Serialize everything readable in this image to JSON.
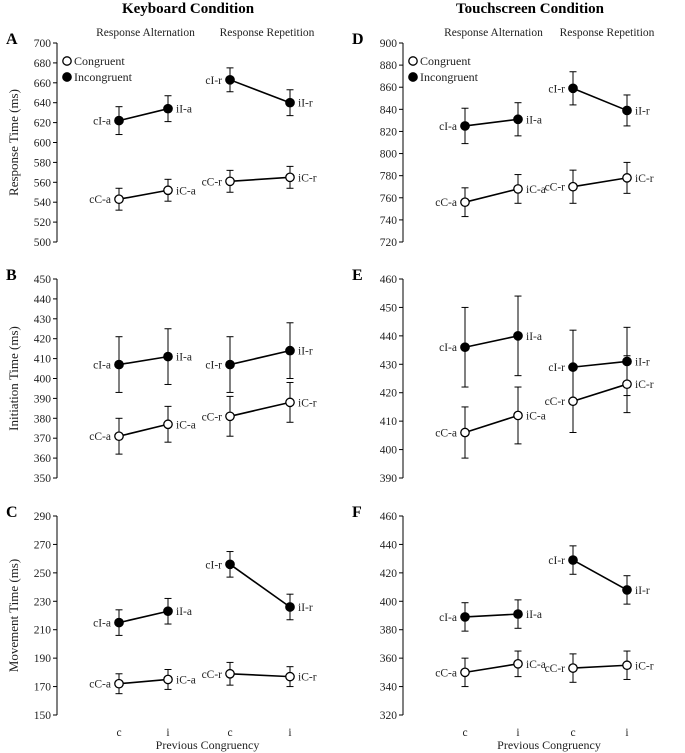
{
  "titles": {
    "keyboard": "Keyboard Condition",
    "touchscreen": "Touchscreen Condition"
  },
  "legend": {
    "congruent": "Congruent",
    "incongruent": "Incongruent"
  },
  "segments": {
    "alternation": "Response Alternation",
    "repetition": "Response Repetition"
  },
  "xaxis": {
    "label": "Previous Congruency",
    "ticks": [
      "c",
      "i",
      "c",
      "i"
    ]
  },
  "chart_data": [
    {
      "panel": "A",
      "type": "line",
      "ylabel": "Response Time (ms)",
      "ylim": [
        500,
        700
      ],
      "ystep": 20,
      "series": [
        {
          "name": "Incongruent",
          "marker": "filled",
          "groups": [
            {
              "points": [
                {
                  "x": "c",
                  "y": 622,
                  "err": 14,
                  "label": "cI-a"
                },
                {
                  "x": "i",
                  "y": 634,
                  "err": 13,
                  "label": "iI-a"
                }
              ]
            },
            {
              "points": [
                {
                  "x": "c",
                  "y": 663,
                  "err": 12,
                  "label": "cI-r"
                },
                {
                  "x": "i",
                  "y": 640,
                  "err": 13,
                  "label": "iI-r"
                }
              ]
            }
          ]
        },
        {
          "name": "Congruent",
          "marker": "open",
          "groups": [
            {
              "points": [
                {
                  "x": "c",
                  "y": 543,
                  "err": 11,
                  "label": "cC-a"
                },
                {
                  "x": "i",
                  "y": 552,
                  "err": 11,
                  "label": "iC-a"
                }
              ]
            },
            {
              "points": [
                {
                  "x": "c",
                  "y": 561,
                  "err": 11,
                  "label": "cC-r"
                },
                {
                  "x": "i",
                  "y": 565,
                  "err": 11,
                  "label": "iC-r"
                }
              ]
            }
          ]
        }
      ]
    },
    {
      "panel": "B",
      "type": "line",
      "ylabel": "Initiation Time (ms)",
      "ylim": [
        350,
        450
      ],
      "ystep": 10,
      "series": [
        {
          "name": "Incongruent",
          "marker": "filled",
          "groups": [
            {
              "points": [
                {
                  "x": "c",
                  "y": 407,
                  "err": 14,
                  "label": "cI-a"
                },
                {
                  "x": "i",
                  "y": 411,
                  "err": 14,
                  "label": "iI-a"
                }
              ]
            },
            {
              "points": [
                {
                  "x": "c",
                  "y": 407,
                  "err": 14,
                  "label": "cI-r"
                },
                {
                  "x": "i",
                  "y": 414,
                  "err": 14,
                  "label": "iI-r"
                }
              ]
            }
          ]
        },
        {
          "name": "Congruent",
          "marker": "open",
          "groups": [
            {
              "points": [
                {
                  "x": "c",
                  "y": 371,
                  "err": 9,
                  "label": "cC-a"
                },
                {
                  "x": "i",
                  "y": 377,
                  "err": 9,
                  "label": "iC-a"
                }
              ]
            },
            {
              "points": [
                {
                  "x": "c",
                  "y": 381,
                  "err": 10,
                  "label": "cC-r"
                },
                {
                  "x": "i",
                  "y": 388,
                  "err": 10,
                  "label": "iC-r"
                }
              ]
            }
          ]
        }
      ]
    },
    {
      "panel": "C",
      "type": "line",
      "ylabel": "Movement Time (ms)",
      "ylim": [
        150,
        290
      ],
      "ystep": 20,
      "series": [
        {
          "name": "Incongruent",
          "marker": "filled",
          "groups": [
            {
              "points": [
                {
                  "x": "c",
                  "y": 215,
                  "err": 9,
                  "label": "cI-a"
                },
                {
                  "x": "i",
                  "y": 223,
                  "err": 9,
                  "label": "iI-a"
                }
              ]
            },
            {
              "points": [
                {
                  "x": "c",
                  "y": 256,
                  "err": 9,
                  "label": "cI-r"
                },
                {
                  "x": "i",
                  "y": 226,
                  "err": 9,
                  "label": "iI-r"
                }
              ]
            }
          ]
        },
        {
          "name": "Congruent",
          "marker": "open",
          "groups": [
            {
              "points": [
                {
                  "x": "c",
                  "y": 172,
                  "err": 7,
                  "label": "cC-a"
                },
                {
                  "x": "i",
                  "y": 175,
                  "err": 7,
                  "label": "iC-a"
                }
              ]
            },
            {
              "points": [
                {
                  "x": "c",
                  "y": 179,
                  "err": 8,
                  "label": "cC-r"
                },
                {
                  "x": "i",
                  "y": 177,
                  "err": 7,
                  "label": "iC-r"
                }
              ]
            }
          ]
        }
      ]
    },
    {
      "panel": "D",
      "type": "line",
      "ylabel": "",
      "ylim": [
        720,
        900
      ],
      "ystep": 20,
      "series": [
        {
          "name": "Incongruent",
          "marker": "filled",
          "groups": [
            {
              "points": [
                {
                  "x": "c",
                  "y": 825,
                  "err": 16,
                  "label": "cI-a"
                },
                {
                  "x": "i",
                  "y": 831,
                  "err": 15,
                  "label": "iI-a"
                }
              ]
            },
            {
              "points": [
                {
                  "x": "c",
                  "y": 859,
                  "err": 15,
                  "label": "cI-r"
                },
                {
                  "x": "i",
                  "y": 839,
                  "err": 14,
                  "label": "iI-r"
                }
              ]
            }
          ]
        },
        {
          "name": "Congruent",
          "marker": "open",
          "groups": [
            {
              "points": [
                {
                  "x": "c",
                  "y": 756,
                  "err": 13,
                  "label": "cC-a"
                },
                {
                  "x": "i",
                  "y": 768,
                  "err": 13,
                  "label": "iC-a"
                }
              ]
            },
            {
              "points": [
                {
                  "x": "c",
                  "y": 770,
                  "err": 15,
                  "label": "cC-r"
                },
                {
                  "x": "i",
                  "y": 778,
                  "err": 14,
                  "label": "iC-r"
                }
              ]
            }
          ]
        }
      ]
    },
    {
      "panel": "E",
      "type": "line",
      "ylabel": "",
      "ylim": [
        390,
        460
      ],
      "ystep": 10,
      "series": [
        {
          "name": "Incongruent",
          "marker": "filled",
          "groups": [
            {
              "points": [
                {
                  "x": "c",
                  "y": 436,
                  "err": 14,
                  "label": "cI-a"
                },
                {
                  "x": "i",
                  "y": 440,
                  "err": 14,
                  "label": "iI-a"
                }
              ]
            },
            {
              "points": [
                {
                  "x": "c",
                  "y": 429,
                  "err": 13,
                  "label": "cI-r"
                },
                {
                  "x": "i",
                  "y": 431,
                  "err": 12,
                  "label": "iI-r"
                }
              ]
            }
          ]
        },
        {
          "name": "Congruent",
          "marker": "open",
          "groups": [
            {
              "points": [
                {
                  "x": "c",
                  "y": 406,
                  "err": 9,
                  "label": "cC-a"
                },
                {
                  "x": "i",
                  "y": 412,
                  "err": 10,
                  "label": "iC-a"
                }
              ]
            },
            {
              "points": [
                {
                  "x": "c",
                  "y": 417,
                  "err": 11,
                  "label": "cC-r"
                },
                {
                  "x": "i",
                  "y": 423,
                  "err": 10,
                  "label": "iC-r"
                }
              ]
            }
          ]
        }
      ]
    },
    {
      "panel": "F",
      "type": "line",
      "ylabel": "",
      "ylim": [
        320,
        460
      ],
      "ystep": 20,
      "series": [
        {
          "name": "Incongruent",
          "marker": "filled",
          "groups": [
            {
              "points": [
                {
                  "x": "c",
                  "y": 389,
                  "err": 10,
                  "label": "cI-a"
                },
                {
                  "x": "i",
                  "y": 391,
                  "err": 10,
                  "label": "iI-a"
                }
              ]
            },
            {
              "points": [
                {
                  "x": "c",
                  "y": 429,
                  "err": 10,
                  "label": "cI-r"
                },
                {
                  "x": "i",
                  "y": 408,
                  "err": 10,
                  "label": "iI-r"
                }
              ]
            }
          ]
        },
        {
          "name": "Congruent",
          "marker": "open",
          "groups": [
            {
              "points": [
                {
                  "x": "c",
                  "y": 350,
                  "err": 10,
                  "label": "cC-a"
                },
                {
                  "x": "i",
                  "y": 356,
                  "err": 9,
                  "label": "iC-a"
                }
              ]
            },
            {
              "points": [
                {
                  "x": "c",
                  "y": 353,
                  "err": 10,
                  "label": "cC-r"
                },
                {
                  "x": "i",
                  "y": 355,
                  "err": 10,
                  "label": "iC-r"
                }
              ]
            }
          ]
        }
      ]
    }
  ]
}
